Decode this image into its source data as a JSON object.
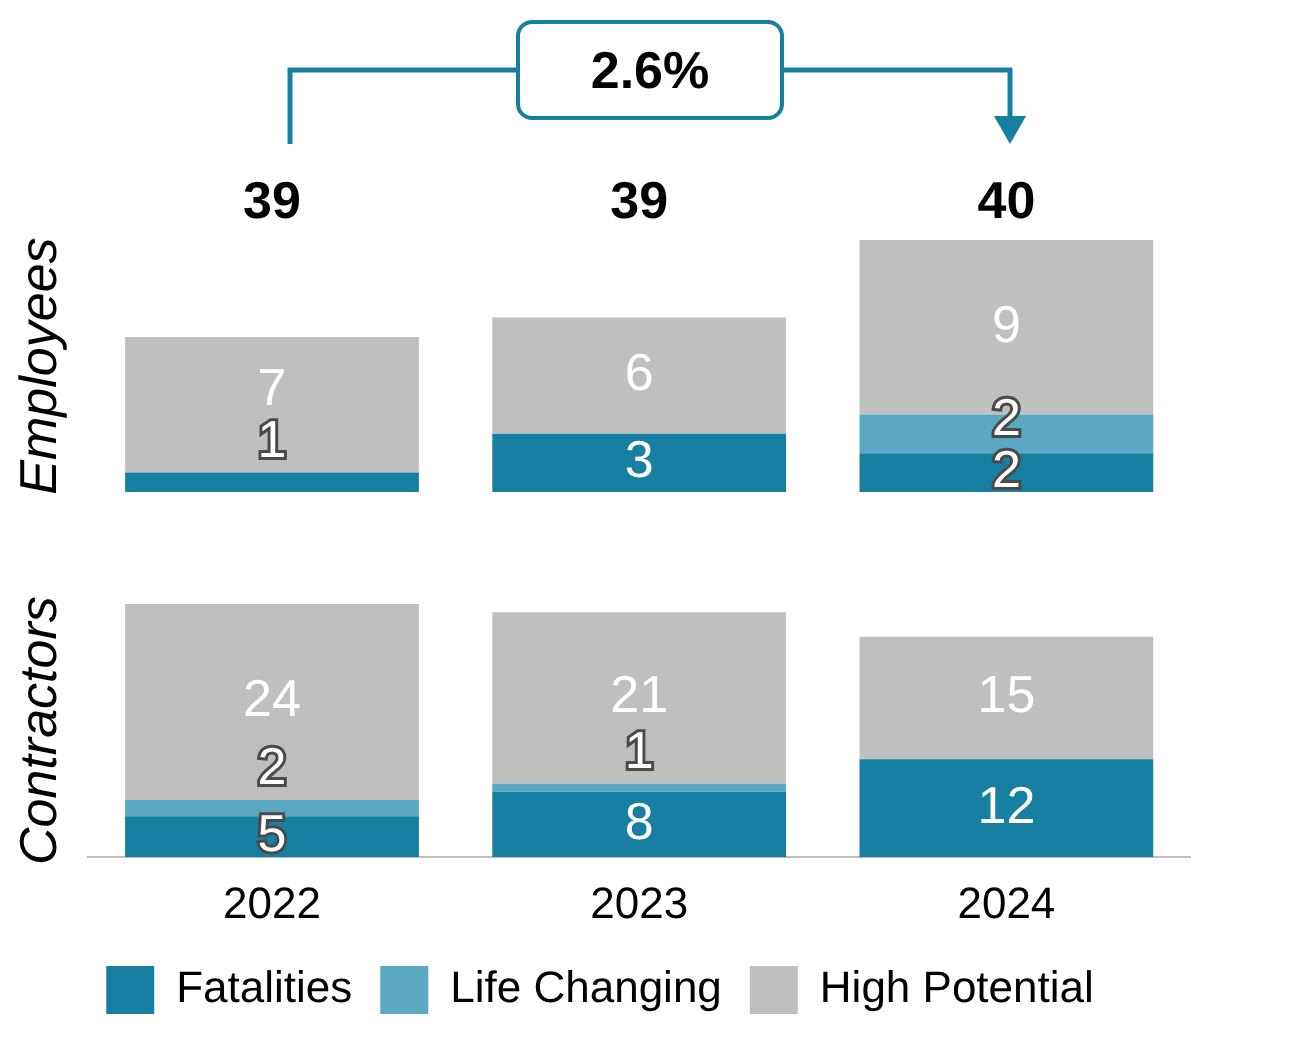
{
  "chart_data": [
    {
      "type": "bar",
      "stacked": true,
      "ylabel": "Employees",
      "categories": [
        "2022",
        "2023",
        "2024"
      ],
      "tick_labels": false,
      "ylim": [
        0,
        13
      ],
      "legend": false,
      "annotations": [
        "2.6%",
        "39",
        "39",
        "40"
      ],
      "series": [
        {
          "color": "#177fa1",
          "values": [
            1,
            3,
            2
          ],
          "value_labels": [
            "1",
            "3",
            "2"
          ]
        },
        {
          "color": "#5ba8c3",
          "values": [
            0,
            0,
            2
          ],
          "value_labels": [
            null,
            null,
            "2"
          ]
        },
        {
          "color": "#bfbfbf",
          "values": [
            7,
            6,
            9
          ],
          "value_labels": [
            "7",
            "6",
            "9"
          ]
        }
      ]
    },
    {
      "type": "bar",
      "stacked": true,
      "ylabel": "Contractors",
      "categories": [
        "2022",
        "2023",
        "2024"
      ],
      "tick_labels": "x",
      "ylim": [
        0,
        31
      ],
      "legend": "bottom",
      "series": [
        {
          "name": "Fatalities",
          "color": "#177fa1",
          "values": [
            5,
            8,
            12
          ],
          "value_labels": [
            "5",
            "8",
            "12"
          ]
        },
        {
          "name": "Life Changing",
          "color": "#5ba8c3",
          "values": [
            2,
            1,
            0
          ],
          "value_labels": [
            "2",
            "1",
            null
          ]
        },
        {
          "name": "High Potential",
          "color": "#bfbfbf",
          "values": [
            24,
            21,
            15
          ],
          "value_labels": [
            "24",
            "21",
            "15"
          ]
        }
      ]
    }
  ]
}
